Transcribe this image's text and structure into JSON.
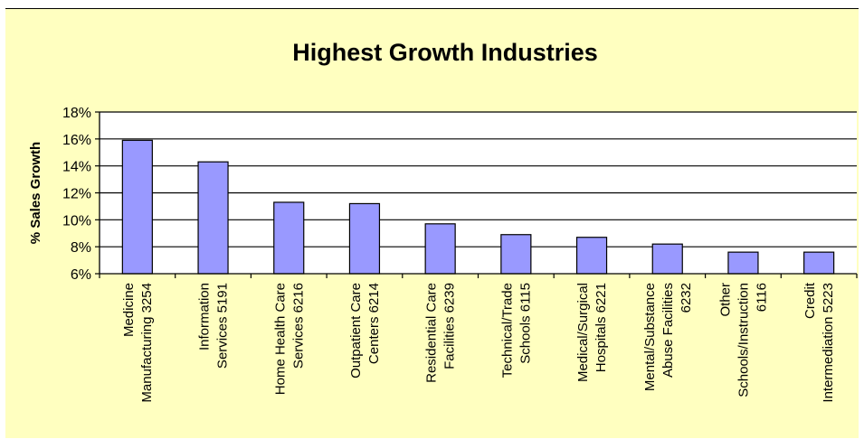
{
  "colors": {
    "background": "#FFFFC0",
    "plot_area": "#FFFFFF",
    "bar_fill": "#9999FF",
    "bar_stroke": "#000000",
    "gridline": "#000000",
    "text": "#000000"
  },
  "chart_data": {
    "type": "bar",
    "title": "Highest Growth Industries",
    "xlabel": "",
    "ylabel": "% Sales Growth",
    "ylim": [
      6,
      18
    ],
    "y_ticks": [
      6,
      8,
      10,
      12,
      14,
      16,
      18
    ],
    "y_tick_labels": [
      "6%",
      "8%",
      "10%",
      "12%",
      "14%",
      "16%",
      "18%"
    ],
    "grid": true,
    "legend": "none",
    "categories": [
      [
        "Medicine",
        "Manufacturing 3254"
      ],
      [
        "Information",
        "Services 5191"
      ],
      [
        "Home Health Care",
        "Services 6216"
      ],
      [
        "Outpatient Care",
        "Centers 6214"
      ],
      [
        "Residential Care",
        "Facilities 6239"
      ],
      [
        "Technical/Trade",
        "Schools 6115"
      ],
      [
        "Medical/Surgical",
        "Hospitals 6221"
      ],
      [
        "Mental/Substance",
        "Abuse Facilities",
        "6232"
      ],
      [
        "Other",
        "Schools/Instruction",
        "6116"
      ],
      [
        "Credit",
        "Intermediation 5223"
      ]
    ],
    "values": [
      15.9,
      14.3,
      11.3,
      11.2,
      9.7,
      8.9,
      8.7,
      8.2,
      7.6,
      7.6
    ]
  }
}
